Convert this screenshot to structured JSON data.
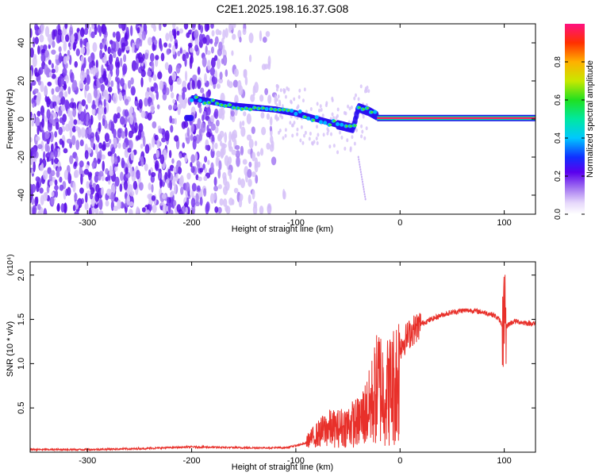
{
  "title": "C2E1.2025.198.16.37.G08",
  "chart_data": [
    {
      "type": "heatmap",
      "xlabel": "Height of straight line (km)",
      "ylabel": "Frequency (Hz)",
      "xlim": [
        -355,
        130
      ],
      "ylim": [
        -50,
        50
      ],
      "xticks": [
        -300,
        -200,
        -100,
        0,
        100
      ],
      "yticks": [
        -40,
        -20,
        0,
        20,
        40
      ],
      "colorbar": {
        "label": "Normalized spectral amplitude",
        "ticks": [
          "0.0",
          "0.2",
          "0.4",
          "0.6",
          "0.8"
        ],
        "tick_values": [
          0.0,
          0.2,
          0.4,
          0.6,
          0.8
        ],
        "range": [
          0,
          1
        ]
      },
      "ridge": {
        "x": [
          -200,
          -180,
          -160,
          -140,
          -120,
          -100,
          -80,
          -60,
          -45,
          -40,
          -30,
          -20,
          0,
          100,
          130
        ],
        "y": [
          11,
          9,
          7,
          6,
          5,
          3,
          0,
          -3,
          -5,
          6,
          4,
          1,
          0.5,
          0.5,
          0.5
        ]
      }
    },
    {
      "type": "line",
      "xlabel": "Height of straight line (km)",
      "ylabel": "SNR (10 * v/v)",
      "y_multiplier": "(x10⁴)",
      "xlim": [
        -355,
        130
      ],
      "ylim": [
        0,
        2.15
      ],
      "xticks": [
        -300,
        -200,
        -100,
        0,
        100
      ],
      "yticks": [
        "0.5",
        "1.0",
        "1.5",
        "2.0"
      ],
      "ytick_values": [
        0.5,
        1.0,
        1.5,
        2.0
      ],
      "series": [
        {
          "color": "#e8302a",
          "x": [
            -355,
            -300,
            -250,
            -200,
            -150,
            -110,
            -90,
            -80,
            -70,
            -60,
            -50,
            -40,
            -30,
            -25,
            -20,
            -15,
            -10,
            -5,
            0,
            10,
            20,
            30,
            40,
            50,
            60,
            70,
            80,
            90,
            95,
            100,
            105,
            110,
            120,
            130
          ],
          "y": [
            0.03,
            0.03,
            0.04,
            0.06,
            0.05,
            0.05,
            0.1,
            0.2,
            0.3,
            0.3,
            0.35,
            0.4,
            0.6,
            0.8,
            1.0,
            0.85,
            0.9,
            1.0,
            1.2,
            1.35,
            1.45,
            1.5,
            1.55,
            1.58,
            1.6,
            1.6,
            1.58,
            1.55,
            1.5,
            1.4,
            1.45,
            1.48,
            1.46,
            1.45
          ]
        }
      ]
    }
  ]
}
